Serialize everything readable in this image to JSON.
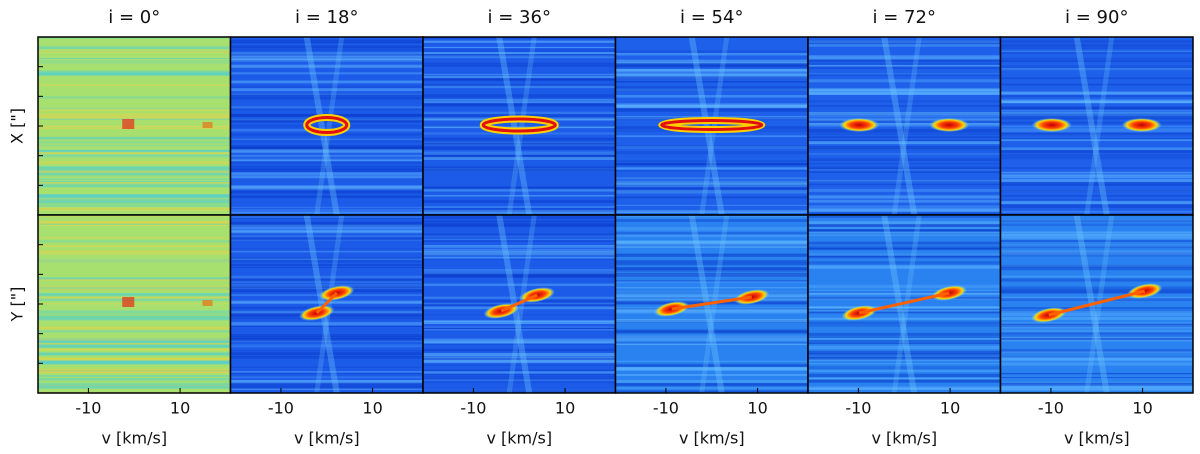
{
  "columns": [
    {
      "title": "i = 0°"
    },
    {
      "title": "i = 18°"
    },
    {
      "title": "i = 36°"
    },
    {
      "title": "i = 54°"
    },
    {
      "title": "i = 72°"
    },
    {
      "title": "i = 90°"
    }
  ],
  "rows": [
    {
      "ylabel": "X [\"]"
    },
    {
      "ylabel": "Y [\"]"
    }
  ],
  "xaxis": {
    "label": "v [km/s]",
    "xlim": [
      -21,
      21
    ],
    "xticks": [
      -10,
      10
    ]
  }
}
